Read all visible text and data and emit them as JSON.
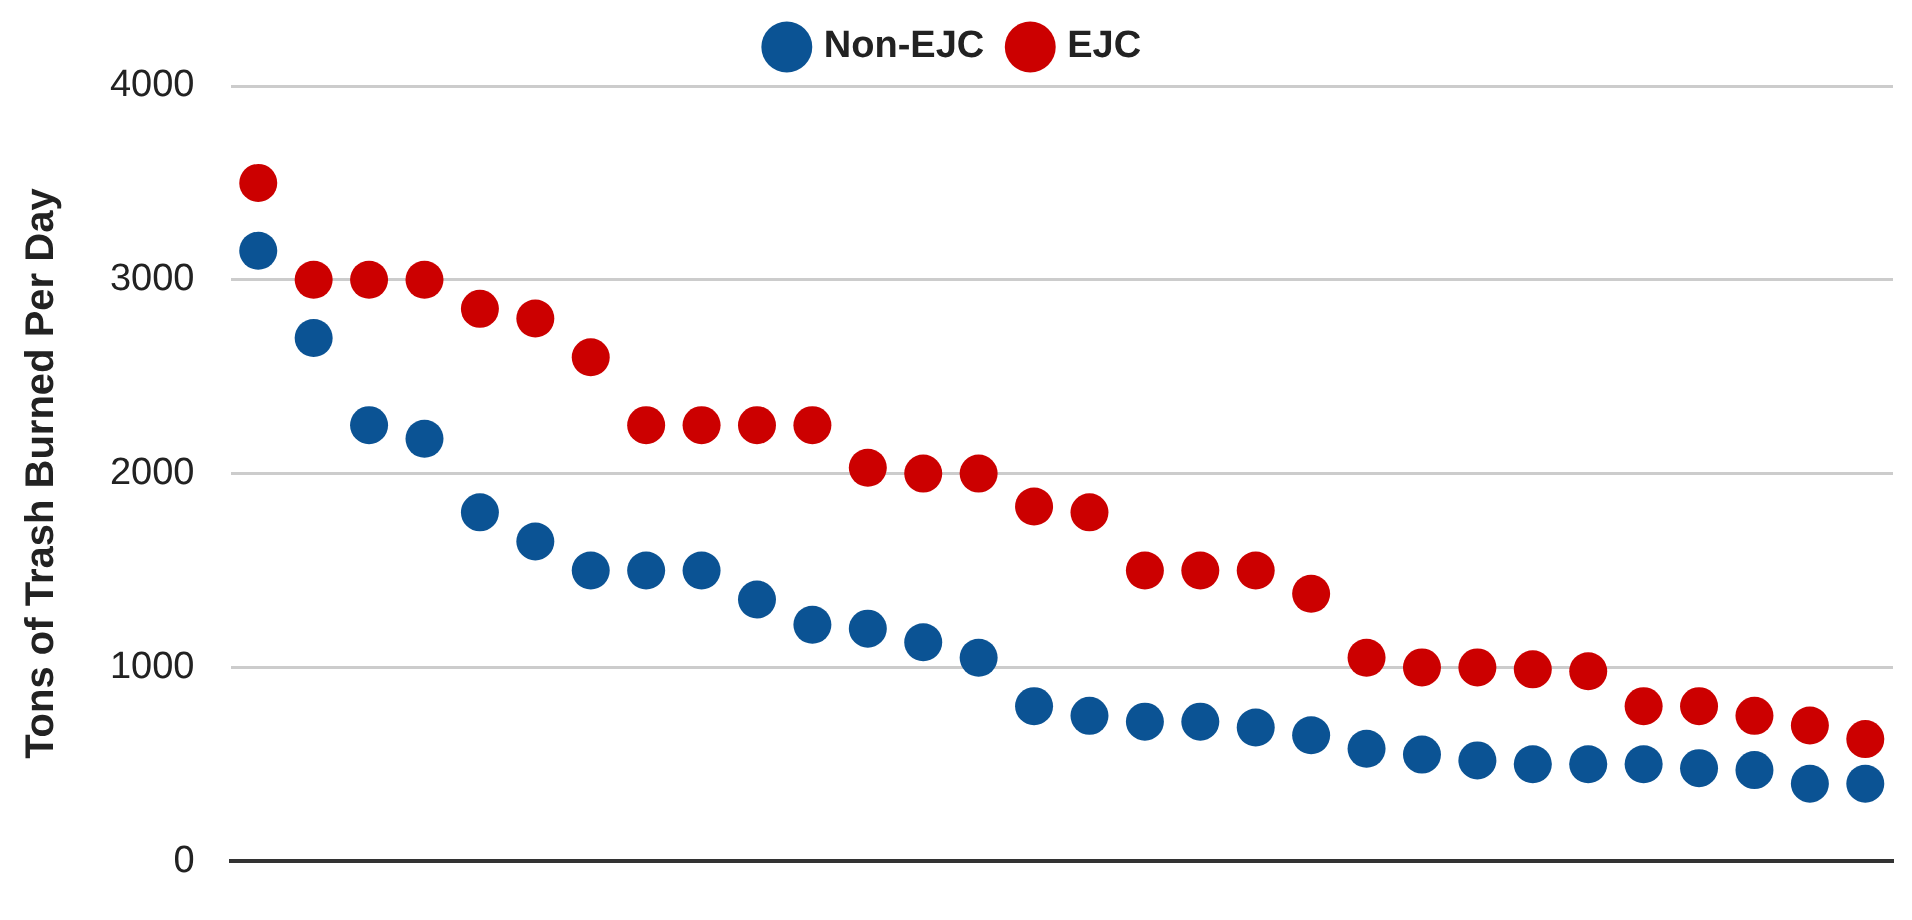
{
  "chart_data": {
    "type": "scatter",
    "ylabel": "Tons of Trash Burned Per Day",
    "categories": [
      null,
      null,
      null,
      null,
      null,
      null,
      null,
      null,
      null,
      null,
      null,
      null,
      null,
      null,
      null,
      null,
      null,
      null,
      null,
      null,
      null,
      null,
      null,
      null,
      null,
      null,
      null,
      null,
      null,
      null
    ],
    "series": [
      {
        "name": "Non-EJC",
        "color": "#0b5394",
        "values": [
          3150,
          2700,
          2250,
          2180,
          1800,
          1650,
          1500,
          1500,
          1500,
          1350,
          1220,
          1200,
          1130,
          1050,
          800,
          750,
          720,
          720,
          690,
          650,
          580,
          550,
          520,
          500,
          500,
          500,
          480,
          470,
          400,
          400
        ]
      },
      {
        "name": "EJC",
        "color": "#cc0000",
        "values": [
          3500,
          3000,
          3000,
          3000,
          2850,
          2800,
          2600,
          2250,
          2250,
          2250,
          2250,
          2030,
          2000,
          2000,
          1830,
          1800,
          1500,
          1500,
          1500,
          1380,
          1050,
          1000,
          1000,
          990,
          980,
          800,
          800,
          750,
          700,
          630
        ]
      }
    ],
    "ylim": [
      0,
      4000
    ],
    "yticks": [
      0,
      1000,
      2000,
      3000,
      4000
    ],
    "grid": "y",
    "legend": "top",
    "marker": "circle",
    "tick_labels": "y"
  }
}
